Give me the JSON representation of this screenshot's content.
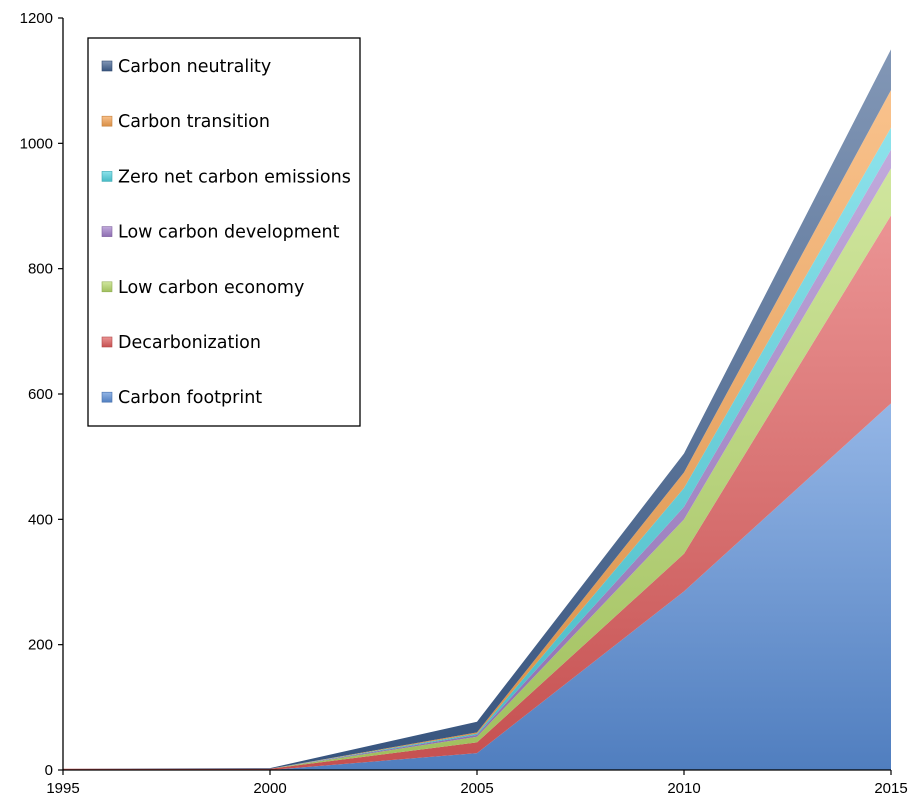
{
  "chart_data": {
    "type": "area",
    "stacked": true,
    "title": "",
    "xlabel": "",
    "ylabel": "",
    "x": [
      1995,
      2000,
      2005,
      2010,
      2015
    ],
    "xlim": [
      1995,
      2015
    ],
    "ylim": [
      0,
      1200
    ],
    "x_ticks": [
      "1995",
      "2000",
      "2005",
      "2010",
      "2015"
    ],
    "y_ticks": [
      "0",
      "200",
      "400",
      "600",
      "800",
      "1000",
      "1200"
    ],
    "grid": false,
    "legend_position": "top-left",
    "series": [
      {
        "name": "Carbon footprint",
        "values": [
          0,
          0,
          27,
          285,
          585
        ],
        "color": "#5b8fd9"
      },
      {
        "name": "Decarbonization",
        "values": [
          2,
          2,
          17,
          60,
          300
        ],
        "color": "#e05b5b"
      },
      {
        "name": "Low carbon economy",
        "values": [
          0,
          0,
          9,
          55,
          75
        ],
        "color": "#b6d96a"
      },
      {
        "name": "Low carbon development",
        "values": [
          0,
          0,
          3,
          20,
          30
        ],
        "color": "#a07cc9"
      },
      {
        "name": "Zero net carbon emissions",
        "values": [
          0,
          0,
          2,
          30,
          35
        ],
        "color": "#4fd3e0"
      },
      {
        "name": "Carbon transition",
        "values": [
          0,
          0,
          2,
          25,
          60
        ],
        "color": "#f5a14e"
      },
      {
        "name": "Carbon neutrality",
        "values": [
          0,
          1,
          17,
          30,
          65
        ],
        "color": "#3f5f8f"
      }
    ],
    "legend_order": [
      "Carbon neutrality",
      "Carbon transition",
      "Zero net carbon emissions",
      "Low carbon development",
      "Low carbon economy",
      "Decarbonization",
      "Carbon footprint"
    ]
  }
}
